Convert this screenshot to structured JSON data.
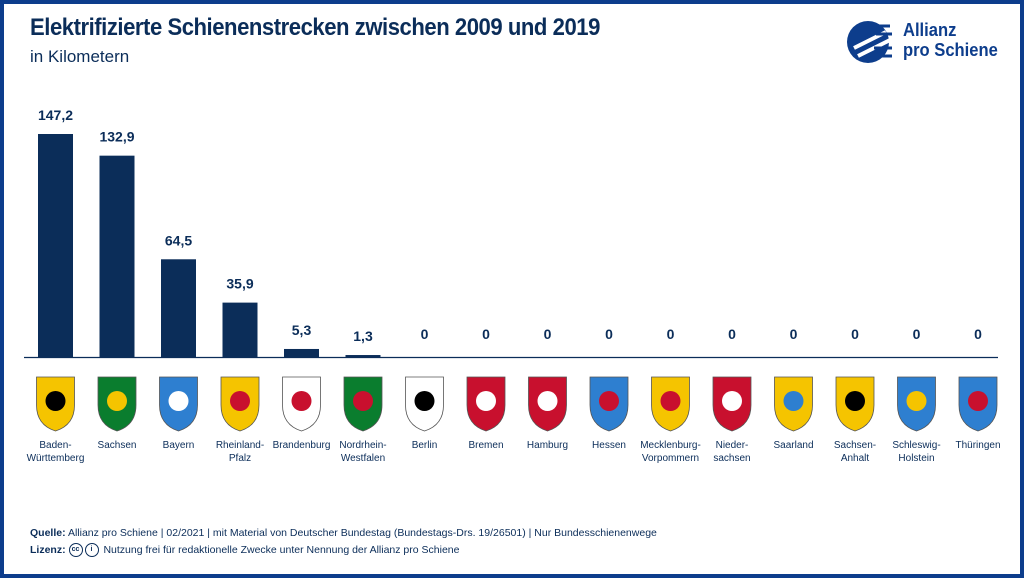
{
  "title": "Elektrifizierte Schienenstrecken zwischen 2009 und 2019",
  "subtitle": "in Kilometern",
  "logo": {
    "line1": "Allianz",
    "line2": "pro Schiene"
  },
  "chart_data": {
    "type": "bar",
    "title": "Elektrifizierte Schienenstrecken zwischen 2009 und 2019",
    "subtitle": "in Kilometern",
    "categories": [
      "Baden-\nWürttemberg",
      "Sachsen",
      "Bayern",
      "Rheinland-\nPfalz",
      "Brandenburg",
      "Nordrhein-\nWestfalen",
      "Berlin",
      "Bremen",
      "Hamburg",
      "Hessen",
      "Mecklenburg-\nVorpommern",
      "Nieder-\nsachsen",
      "Saarland",
      "Sachsen-\nAnhalt",
      "Schleswig-\nHolstein",
      "Thüringen"
    ],
    "values": [
      147.2,
      132.9,
      64.5,
      35.9,
      5.3,
      1.3,
      0,
      0,
      0,
      0,
      0,
      0,
      0,
      0,
      0,
      0
    ],
    "value_labels": [
      "147,2",
      "132,9",
      "64,5",
      "35,9",
      "5,3",
      "1,3",
      "0",
      "0",
      "0",
      "0",
      "0",
      "0",
      "0",
      "0",
      "0",
      "0"
    ],
    "ylim": [
      0,
      150
    ],
    "bar_color": "#0b2d59",
    "legend": "none",
    "grid": false
  },
  "crests": {
    "icons": [
      "bw-crest-icon",
      "sachsen-crest-icon",
      "bayern-crest-icon",
      "rlp-crest-icon",
      "brandenburg-crest-icon",
      "nrw-crest-icon",
      "berlin-crest-icon",
      "bremen-crest-icon",
      "hamburg-crest-icon",
      "hessen-crest-icon",
      "mv-crest-icon",
      "niedersachsen-crest-icon",
      "saarland-crest-icon",
      "sachsen-anhalt-crest-icon",
      "sh-crest-icon",
      "thueringen-crest-icon"
    ]
  },
  "footer": {
    "source_label": "Quelle:",
    "source_text": "Allianz pro Schiene | 02/2021 | mit Material von Deutscher Bundestag (Bundestags-Drs. 19/26501) | Nur Bundesschienenwege",
    "license_label": "Lizenz:",
    "license_text": "Nutzung frei für redaktionelle Zwecke unter Nennung der Allianz pro Schiene"
  },
  "colors": {
    "navy": "#0b2d59",
    "border": "#0d3d8c"
  }
}
